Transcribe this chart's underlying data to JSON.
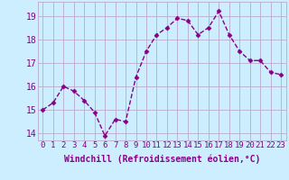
{
  "x": [
    0,
    1,
    2,
    3,
    4,
    5,
    6,
    7,
    8,
    9,
    10,
    11,
    12,
    13,
    14,
    15,
    16,
    17,
    18,
    19,
    20,
    21,
    22,
    23
  ],
  "y": [
    15.0,
    15.3,
    16.0,
    15.8,
    15.4,
    14.9,
    13.9,
    14.6,
    14.5,
    16.4,
    17.5,
    18.2,
    18.5,
    18.9,
    18.8,
    18.2,
    18.5,
    19.2,
    18.2,
    17.5,
    17.1,
    17.1,
    16.6,
    16.5
  ],
  "line_color": "#880088",
  "marker": "D",
  "marker_size": 2.5,
  "bg_color": "#cceeff",
  "plot_bg_color": "#cceeff",
  "grid_color": "#bbaacc",
  "xlabel": "Windchill (Refroidissement éolien,°C)",
  "ylim": [
    13.7,
    19.6
  ],
  "xlim": [
    -0.5,
    23.5
  ],
  "yticks": [
    14,
    15,
    16,
    17,
    18,
    19
  ],
  "xticks": [
    0,
    1,
    2,
    3,
    4,
    5,
    6,
    7,
    8,
    9,
    10,
    11,
    12,
    13,
    14,
    15,
    16,
    17,
    18,
    19,
    20,
    21,
    22,
    23
  ],
  "xtick_labels": [
    "0",
    "1",
    "2",
    "3",
    "4",
    "5",
    "6",
    "7",
    "8",
    "9",
    "10",
    "11",
    "12",
    "13",
    "14",
    "15",
    "16",
    "17",
    "18",
    "19",
    "20",
    "21",
    "22",
    "23"
  ],
  "tick_color": "#880088",
  "label_color": "#880088",
  "xlabel_fontsize": 7.0,
  "tick_fontsize": 6.5,
  "ytick_fontsize": 7.0,
  "linewidth": 1.0
}
